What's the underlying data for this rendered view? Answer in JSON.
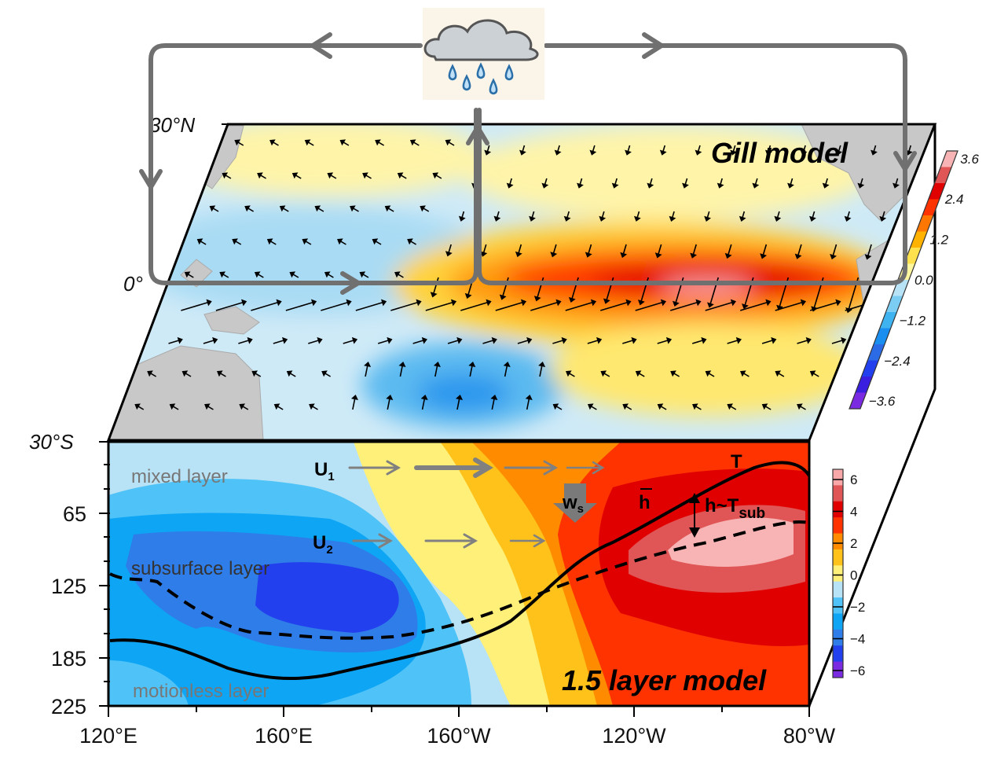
{
  "top_panel": {
    "title": "Gill model",
    "lat_labels": [
      "30°N",
      "0°",
      "30°S"
    ],
    "colorbar": {
      "ticks": [
        "3.6",
        "2.4",
        "1.2",
        "0.0",
        "−1.2",
        "−2.4",
        "−3.6"
      ],
      "colors": [
        "#f8b4b4",
        "#e05555",
        "#e00000",
        "#ff3300",
        "#ff7700",
        "#ffb300",
        "#ffe14d",
        "#fff7a0",
        "#b8e2f5",
        "#7ccdf3",
        "#3fb3f0",
        "#1a8fef",
        "#2b6be6",
        "#2340ee",
        "#3a1fe0",
        "#7a2ae0"
      ]
    }
  },
  "bottom_panel": {
    "title": "1.5 layer model",
    "layers": [
      "mixed layer",
      "subsurface layer",
      "motionless layer"
    ],
    "depth_labels": [
      "65",
      "125",
      "185",
      "225"
    ],
    "lon_labels": [
      "120°E",
      "160°E",
      "160°W",
      "120°W",
      "80°W"
    ],
    "annotations": {
      "u1": "U",
      "u1_sub": "1",
      "u2": "U",
      "u2_sub": "2",
      "ws": "w",
      "ws_sub": "s",
      "hbar": "h",
      "t": "T",
      "h_tsub": "h~T",
      "h_tsub_sub": "sub"
    },
    "colorbar": {
      "ticks": [
        "6",
        "4",
        "2",
        "0",
        "−2",
        "−4",
        "−6"
      ],
      "colors": [
        "#f8a8a8",
        "#e05555",
        "#e00000",
        "#ff3300",
        "#ff8c00",
        "#ffc21a",
        "#fff07a",
        "#b8e2f5",
        "#4fc3f7",
        "#0ea5f5",
        "#2f7de8",
        "#2340ee",
        "#7a2ae0"
      ]
    }
  },
  "circulation": {
    "icon": "rain-cloud-icon",
    "line_color": "#707070"
  }
}
